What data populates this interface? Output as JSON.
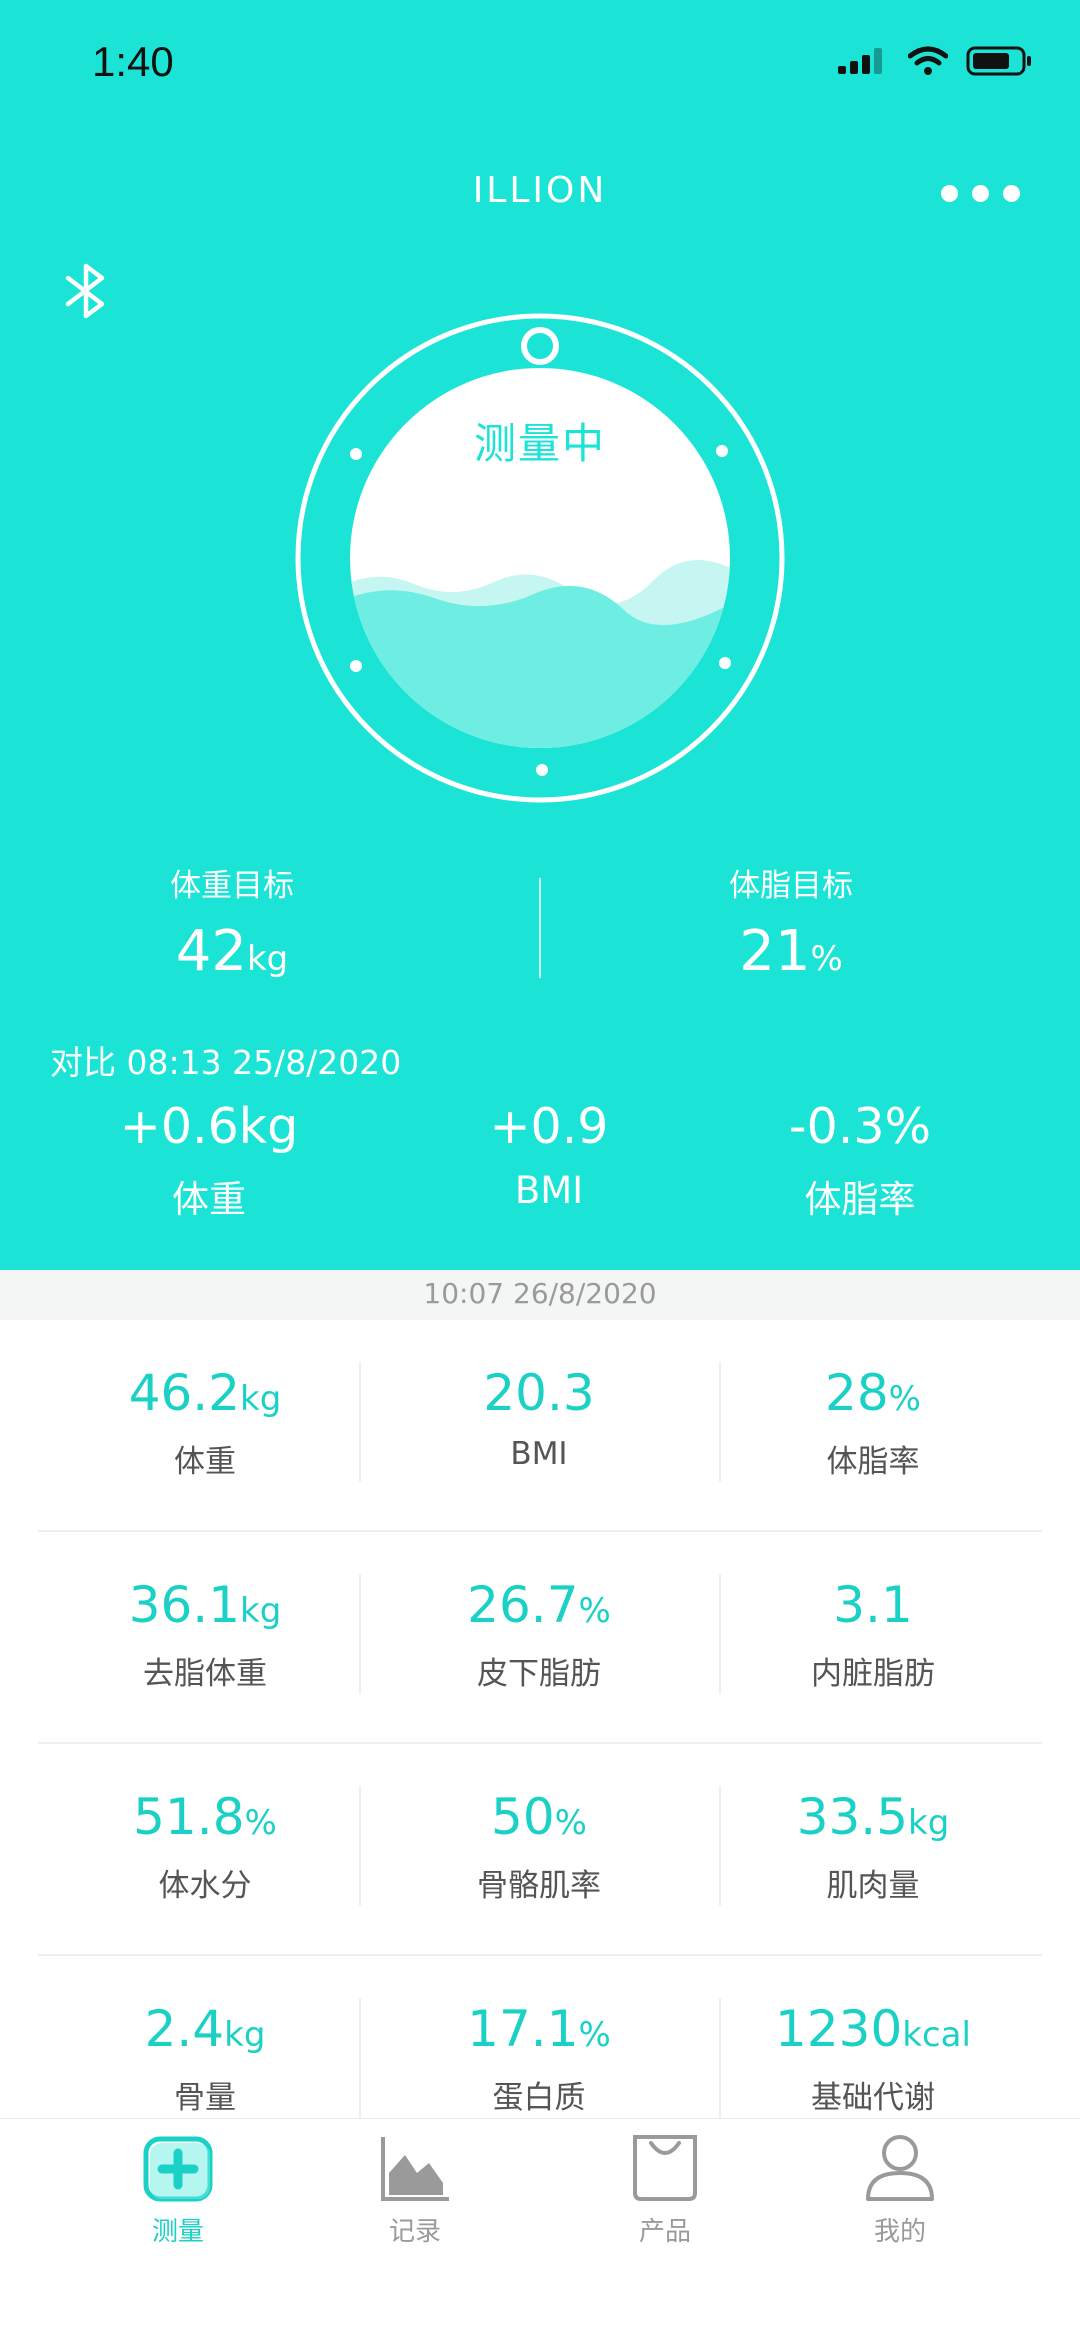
{
  "status": {
    "time": "1:40"
  },
  "header": {
    "title": "ILLION"
  },
  "dial": {
    "state_label": "测量中"
  },
  "goals": [
    {
      "label": "体重目标",
      "value": "42",
      "unit": "kg"
    },
    {
      "label": "体脂目标",
      "value": "21",
      "unit": "%"
    }
  ],
  "compare": {
    "label": "对比 08:13 25/8/2020",
    "items": [
      {
        "value": "+0.6kg",
        "label": "体重"
      },
      {
        "value": "+0.9",
        "label": "BMI"
      },
      {
        "value": "-0.3%",
        "label": "体脂率"
      }
    ]
  },
  "measure_date": "10:07 26/8/2020",
  "metrics": [
    [
      {
        "value": "46.2",
        "unit": "kg",
        "label": "体重"
      },
      {
        "value": "20.3",
        "unit": "",
        "label": "BMI"
      },
      {
        "value": "28",
        "unit": "%",
        "label": "体脂率"
      }
    ],
    [
      {
        "value": "36.1",
        "unit": "kg",
        "label": "去脂体重"
      },
      {
        "value": "26.7",
        "unit": "%",
        "label": "皮下脂肪"
      },
      {
        "value": "3.1",
        "unit": "",
        "label": "内脏脂肪"
      }
    ],
    [
      {
        "value": "51.8",
        "unit": "%",
        "label": "体水分"
      },
      {
        "value": "50",
        "unit": "%",
        "label": "骨骼肌率"
      },
      {
        "value": "33.5",
        "unit": "kg",
        "label": "肌肉量"
      }
    ],
    [
      {
        "value": "2.4",
        "unit": "kg",
        "label": "骨量"
      },
      {
        "value": "17.1",
        "unit": "%",
        "label": "蛋白质"
      },
      {
        "value": "1230",
        "unit": "kcal",
        "label": "基础代谢"
      }
    ]
  ],
  "tabs": [
    {
      "label": "测量",
      "icon": "measure-icon",
      "active": true
    },
    {
      "label": "记录",
      "icon": "chart-icon",
      "active": false
    },
    {
      "label": "产品",
      "icon": "bag-icon",
      "active": false
    },
    {
      "label": "我的",
      "icon": "person-icon",
      "active": false
    }
  ],
  "colors": {
    "accent": "#1BE4D6",
    "value_text": "#1BD1C6",
    "wave": "#6EEEE3"
  }
}
